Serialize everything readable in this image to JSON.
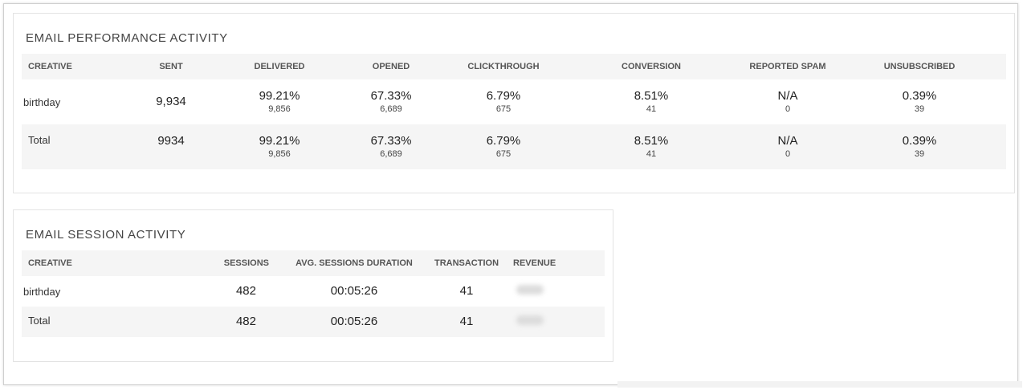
{
  "performance": {
    "title": "EMAIL PERFORMANCE ACTIVITY",
    "headers": [
      "CREATIVE",
      "SENT",
      "DELIVERED",
      "OPENED",
      "CLICKTHROUGH",
      "CONVERSION",
      "REPORTED SPAM",
      "UNSUBSCRIBED"
    ],
    "rows": [
      {
        "creative": "birthday",
        "sent": "9,934",
        "delivered": {
          "pct": "99.21%",
          "count": "9,856"
        },
        "opened": {
          "pct": "67.33%",
          "count": "6,689"
        },
        "clickthrough": {
          "pct": "6.79%",
          "count": "675"
        },
        "conversion": {
          "pct": "8.51%",
          "count": "41"
        },
        "spam": {
          "pct": "N/A",
          "count": "0"
        },
        "unsubscribed": {
          "pct": "0.39%",
          "count": "39"
        }
      },
      {
        "creative": "Total",
        "sent": "9934",
        "delivered": {
          "pct": "99.21%",
          "count": "9,856"
        },
        "opened": {
          "pct": "67.33%",
          "count": "6,689"
        },
        "clickthrough": {
          "pct": "6.79%",
          "count": "675"
        },
        "conversion": {
          "pct": "8.51%",
          "count": "41"
        },
        "spam": {
          "pct": "N/A",
          "count": "0"
        },
        "unsubscribed": {
          "pct": "0.39%",
          "count": "39"
        }
      }
    ]
  },
  "session": {
    "title": "EMAIL SESSION ACTIVITY",
    "headers": [
      "CREATIVE",
      "SESSIONS",
      "AVG. SESSIONS DURATION",
      "TRANSACTION",
      "REVENUE"
    ],
    "rows": [
      {
        "creative": "birthday",
        "sessions": "482",
        "duration": "00:05:26",
        "transaction": "41"
      },
      {
        "creative": "Total",
        "sessions": "482",
        "duration": "00:05:26",
        "transaction": "41"
      }
    ]
  }
}
